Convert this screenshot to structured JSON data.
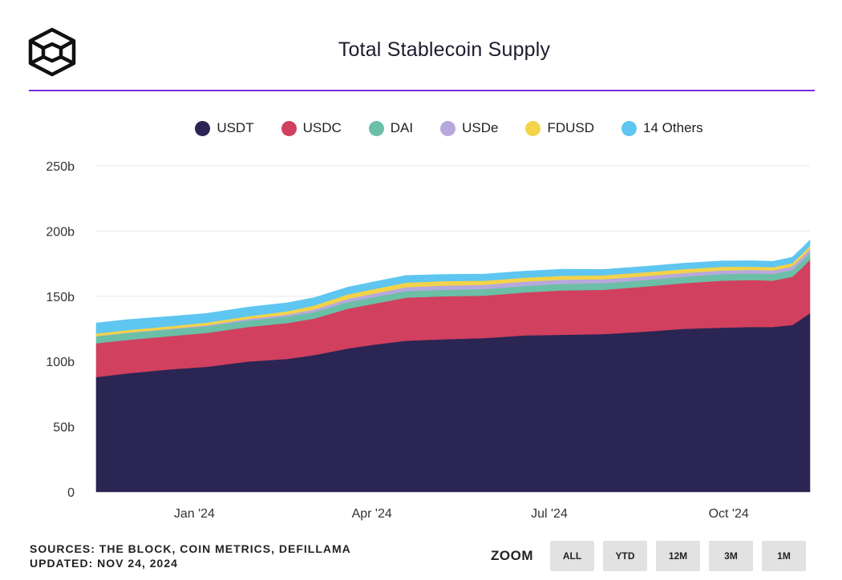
{
  "header": {
    "title": "Total Stablecoin Supply",
    "accent_color": "#7b2be0",
    "logo_icon": "cube-logo-icon"
  },
  "legend": {
    "items": [
      {
        "label": "USDT",
        "color": "#2b2553"
      },
      {
        "label": "USDC",
        "color": "#d1405f"
      },
      {
        "label": "DAI",
        "color": "#6bbfa6"
      },
      {
        "label": "USDe",
        "color": "#b6a8dc"
      },
      {
        "label": "FDUSD",
        "color": "#f3d34a"
      },
      {
        "label": "14 Others",
        "color": "#5ec6f0"
      }
    ]
  },
  "footer": {
    "sources": "SOURCES: THE BLOCK, COIN METRICS, DEFILLAMA",
    "updated": "UPDATED: NOV 24, 2024",
    "zoom_label": "ZOOM",
    "zoom_buttons": [
      "ALL",
      "YTD",
      "12M",
      "3M",
      "1M"
    ]
  },
  "chart_data": {
    "type": "area",
    "stacked": true,
    "title": "Total Stablecoin Supply",
    "y_unit": "b",
    "ylim": [
      0,
      250
    ],
    "y_ticks": [
      0,
      50,
      100,
      150,
      200,
      250
    ],
    "y_tick_labels": [
      "0",
      "50b",
      "100b",
      "150b",
      "200b",
      "250b"
    ],
    "x_tick_labels": [
      "Jan '24",
      "Apr '24",
      "Jul '24",
      "Oct '24"
    ],
    "x_tick_dates": [
      "2024-01-01",
      "2024-04-01",
      "2024-07-01",
      "2024-10-01"
    ],
    "grid": true,
    "legend_position": "top-center",
    "x": [
      "2023-11-24",
      "2023-12-10",
      "2024-01-01",
      "2024-01-20",
      "2024-02-10",
      "2024-03-01",
      "2024-03-15",
      "2024-04-01",
      "2024-04-15",
      "2024-05-01",
      "2024-05-20",
      "2024-06-10",
      "2024-07-01",
      "2024-07-20",
      "2024-08-10",
      "2024-09-01",
      "2024-09-20",
      "2024-10-10",
      "2024-10-25",
      "2024-11-05",
      "2024-11-15",
      "2024-11-20",
      "2024-11-24"
    ],
    "series": [
      {
        "name": "USDT",
        "color": "#2b2553",
        "values": [
          88,
          91,
          94,
          96,
          100,
          102,
          105,
          110,
          113,
          116,
          117,
          118,
          120,
          120.5,
          121,
          123,
          125,
          126,
          126.5,
          126.5,
          128,
          133,
          137
        ]
      },
      {
        "name": "USDC",
        "color": "#d1405f",
        "values": [
          26,
          25.5,
          25.5,
          26,
          26.5,
          27.5,
          28,
          30.5,
          31.5,
          33,
          33,
          32.5,
          33,
          34,
          34,
          34.5,
          35,
          36,
          36,
          35.5,
          37,
          39,
          41
        ]
      },
      {
        "name": "DAI",
        "color": "#6bbfa6",
        "values": [
          5.3,
          5.3,
          5.2,
          5.1,
          5,
          5,
          5,
          5,
          5,
          5,
          5,
          5,
          5,
          5,
          5,
          5,
          5,
          5,
          5,
          5,
          5,
          5,
          5
        ]
      },
      {
        "name": "USDe",
        "color": "#b6a8dc",
        "values": [
          0.2,
          0.3,
          0.4,
          0.8,
          1.2,
          1.5,
          2,
          2.5,
          2.8,
          3,
          3.2,
          3.3,
          3.3,
          3.2,
          3.1,
          3,
          2.8,
          2.8,
          2.8,
          2.8,
          3,
          3.1,
          3.2
        ]
      },
      {
        "name": "FDUSD",
        "color": "#f3d34a",
        "values": [
          2,
          2,
          2,
          2,
          2,
          2.5,
          3,
          3.5,
          3.5,
          3.5,
          3.5,
          3.2,
          3,
          3,
          3,
          3,
          3,
          2.8,
          2.5,
          2.5,
          2.5,
          2.5,
          2.5
        ]
      },
      {
        "name": "14 Others",
        "color": "#5ec6f0",
        "values": [
          8,
          8,
          7.5,
          7,
          7,
          6.5,
          6,
          5.5,
          5.5,
          5.5,
          5,
          5,
          5,
          5,
          4.5,
          4.5,
          4.5,
          4.5,
          4.5,
          4.5,
          4.5,
          4.5,
          4.5
        ]
      }
    ]
  }
}
